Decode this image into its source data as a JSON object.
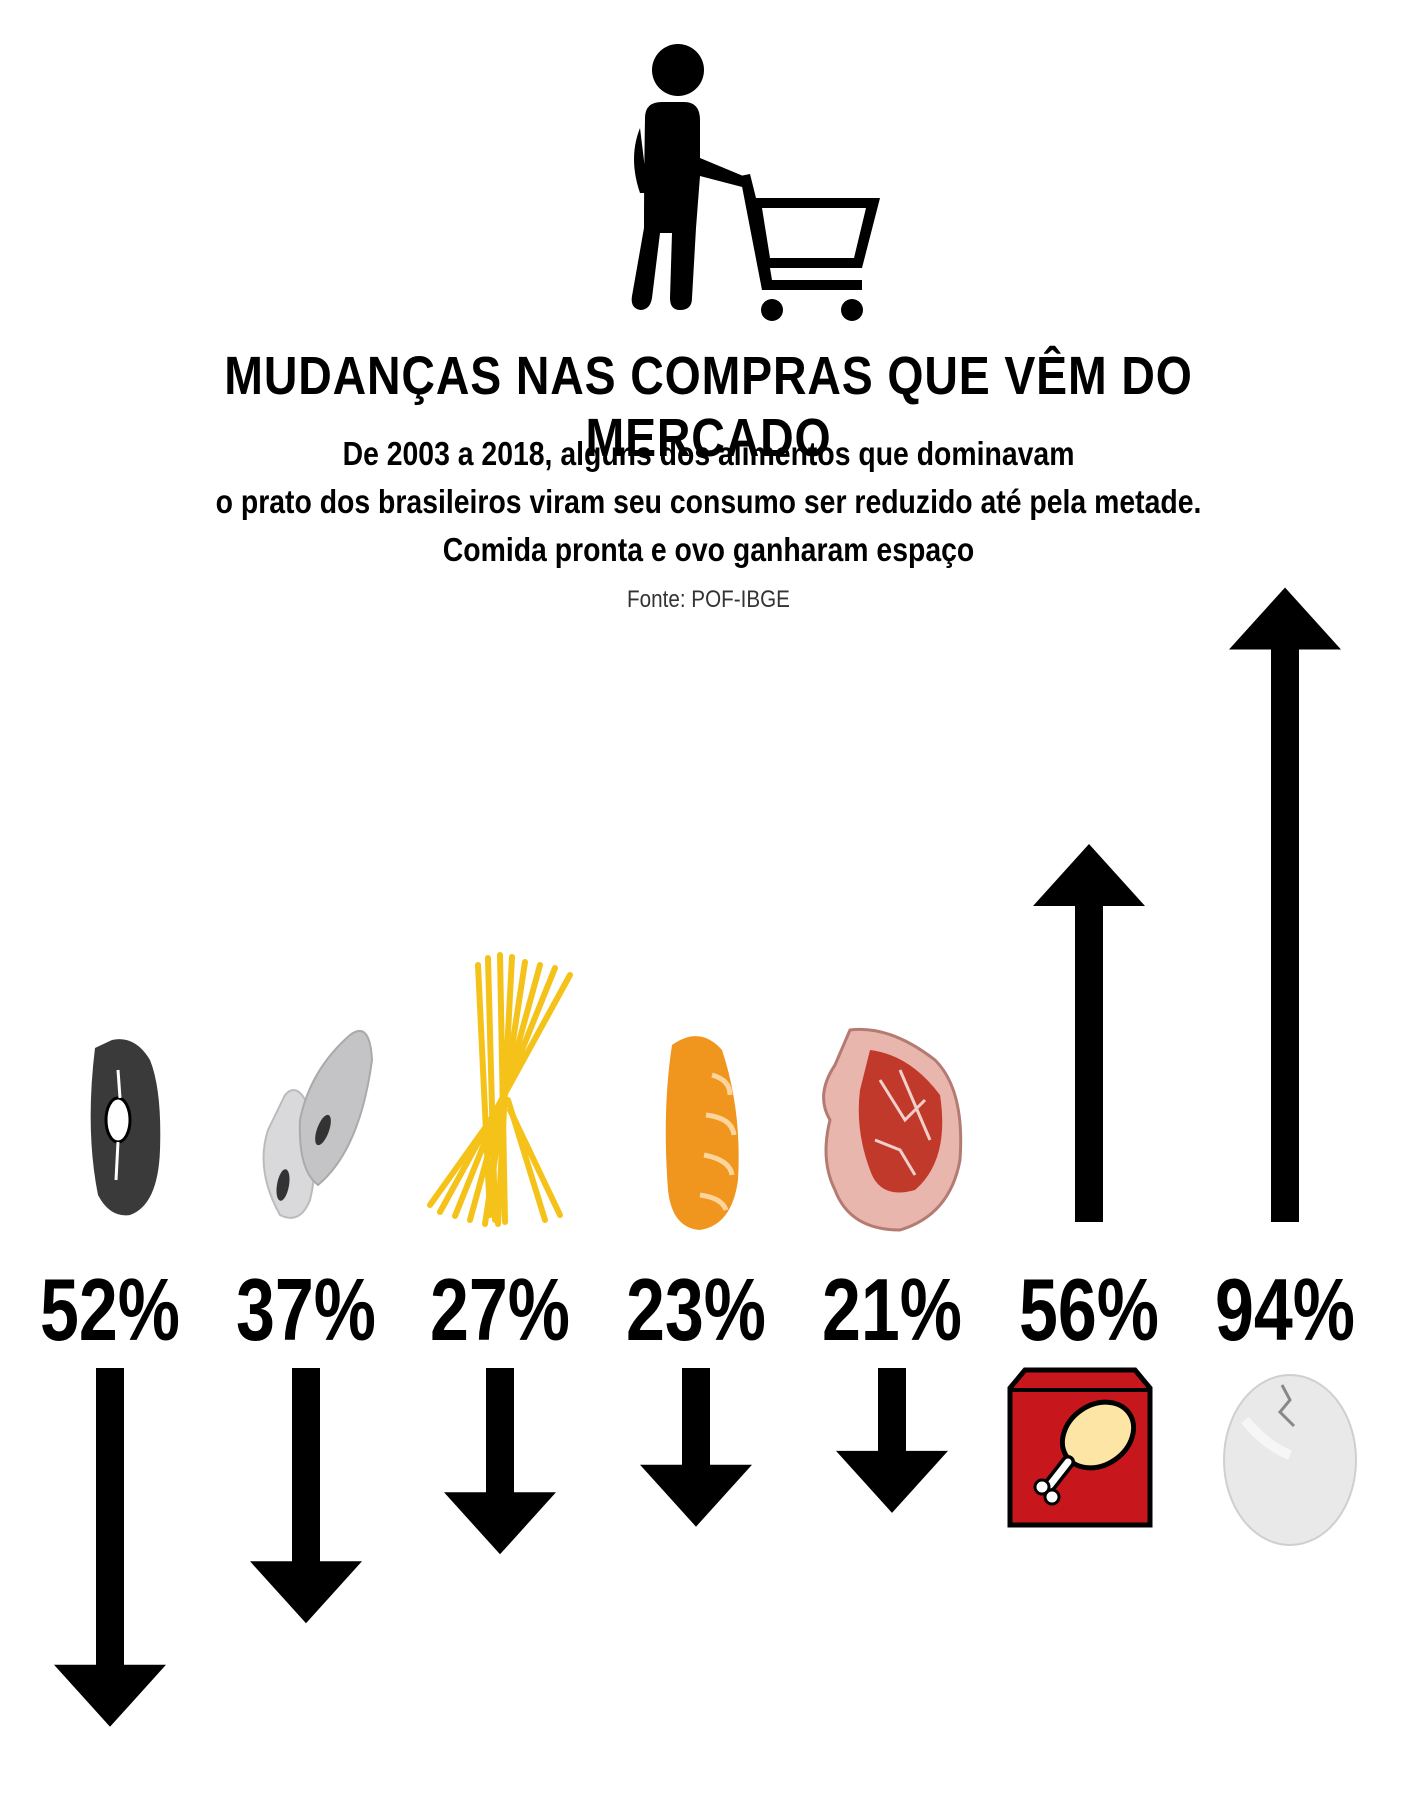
{
  "header": {
    "title": "MUDANÇAS NAS COMPRAS QUE VÊM DO MERCADO",
    "subtitle_lines": [
      "De 2003 a 2018, alguns dos alimentos que dominavam",
      "o prato dos brasileiros viram seu consumo ser reduzido até pela metade.",
      "Comida pronta e ovo ganharam espaço"
    ],
    "source": "Fonte: POF-IBGE"
  },
  "icons": {
    "hero": "shopper-with-cart-icon",
    "items": [
      "black-bean-icon",
      "rice-icon",
      "spaghetti-icon",
      "bread-icon",
      "steak-icon",
      "ready-meal-box-icon",
      "egg-icon"
    ]
  },
  "colors": {
    "arrow": "#000000",
    "bean": "#3a3a3a",
    "rice": "#d9d9dc",
    "pasta": "#f5c21a",
    "bread": "#f0951e",
    "meat": "#c0392b",
    "box": "#c8161d",
    "egg": "#e9e9ea"
  },
  "chart_data": {
    "type": "bar",
    "categories": [],
    "series": [
      {
        "values": [
          -52,
          -37,
          -27,
          -23,
          -21,
          56,
          94
        ]
      }
    ],
    "labels": [
      "52%",
      "37%",
      "27%",
      "23%",
      "21%",
      "56%",
      "94%"
    ]
  }
}
